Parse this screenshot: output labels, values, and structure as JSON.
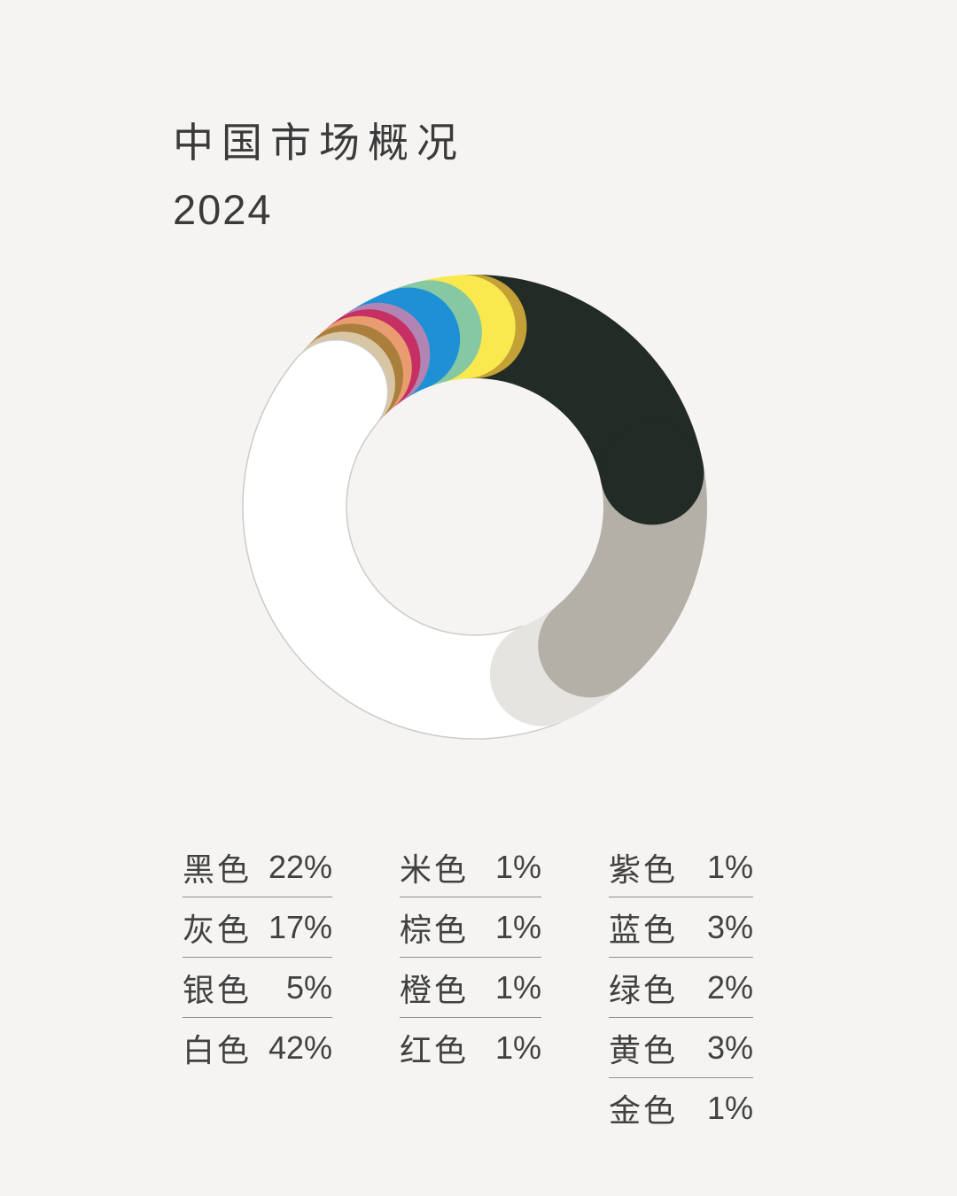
{
  "header": {
    "title_line1": "中国市场概况",
    "title_line2": "2024"
  },
  "chart_data": {
    "type": "pie",
    "subtype": "donut",
    "title": "中国市场概况 2024",
    "unit": "%",
    "start_angle_deg": 0,
    "direction": "clockwise",
    "style": "overlapping-round-caps",
    "background_color": "#f5f4f2",
    "segments": [
      {
        "label": "黑色",
        "name": "black",
        "pct": 22,
        "pct_text": "22%",
        "color": "#222b25"
      },
      {
        "label": "灰色",
        "name": "gray",
        "pct": 17,
        "pct_text": "17%",
        "color": "#b4b0a7"
      },
      {
        "label": "银色",
        "name": "silver",
        "pct": 5,
        "pct_text": "5%",
        "color": "#e5e4e1"
      },
      {
        "label": "白色",
        "name": "white",
        "pct": 42,
        "pct_text": "42%",
        "color": "#ffffff",
        "outline": "#cccbc8"
      },
      {
        "label": "米色",
        "name": "beige",
        "pct": 1,
        "pct_text": "1%",
        "color": "#d8c5a3"
      },
      {
        "label": "棕色",
        "name": "brown",
        "pct": 1,
        "pct_text": "1%",
        "color": "#aa7f3d"
      },
      {
        "label": "橙色",
        "name": "orange",
        "pct": 1,
        "pct_text": "1%",
        "color": "#e99c70"
      },
      {
        "label": "红色",
        "name": "red",
        "pct": 1,
        "pct_text": "1%",
        "color": "#c52f63"
      },
      {
        "label": "紫色",
        "name": "purple",
        "pct": 1,
        "pct_text": "1%",
        "color": "#b184b4"
      },
      {
        "label": "蓝色",
        "name": "blue",
        "pct": 3,
        "pct_text": "3%",
        "color": "#1e90d6"
      },
      {
        "label": "绿色",
        "name": "green",
        "pct": 2,
        "pct_text": "2%",
        "color": "#85c8a2"
      },
      {
        "label": "黄色",
        "name": "yellow",
        "pct": 3,
        "pct_text": "3%",
        "color": "#f9e94f"
      },
      {
        "label": "金色",
        "name": "gold",
        "pct": 1,
        "pct_text": "1%",
        "color": "#c4a136"
      }
    ]
  }
}
